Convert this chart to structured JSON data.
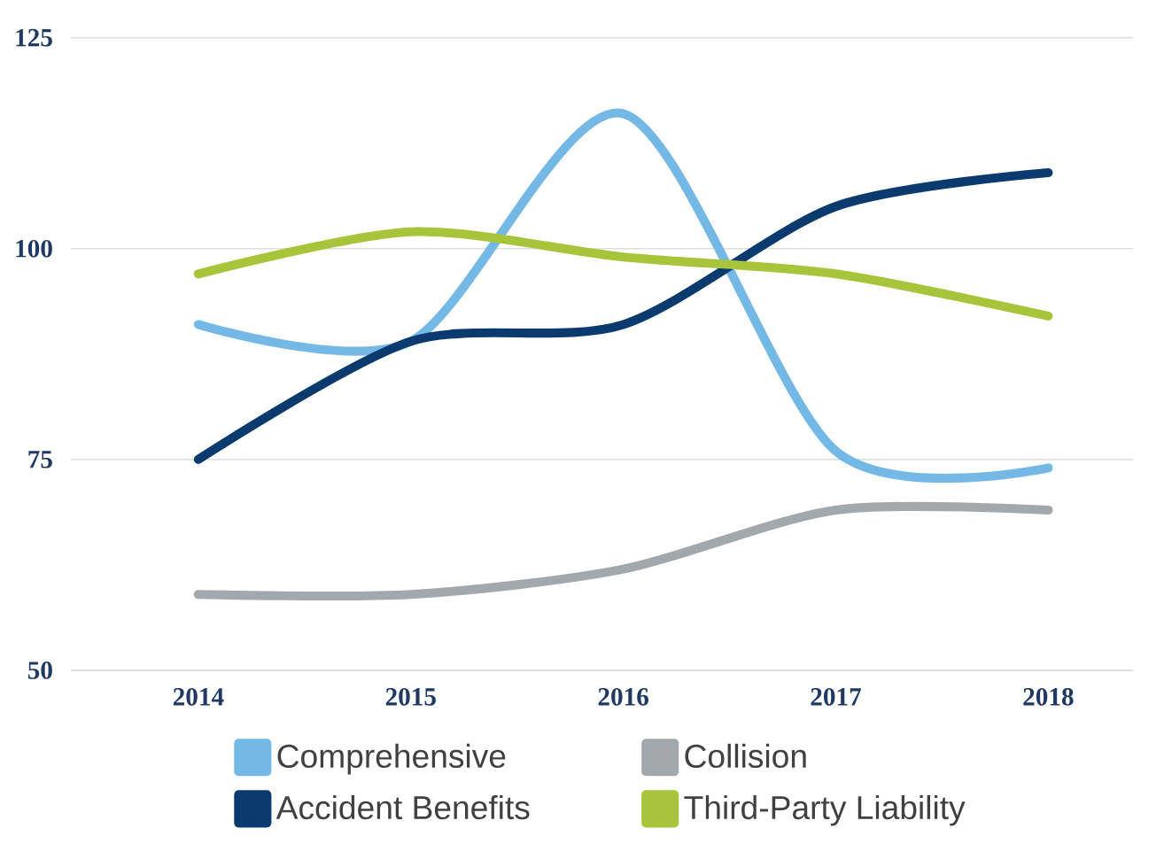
{
  "chart_data": {
    "type": "line",
    "categories": [
      "2014",
      "2015",
      "2016",
      "2017",
      "2018"
    ],
    "series": [
      {
        "name": "Comprehensive",
        "color": "#74b8e6",
        "values": [
          91,
          89,
          116,
          76,
          74
        ]
      },
      {
        "name": "Collision",
        "color": "#a2a9ad",
        "values": [
          59,
          59,
          62,
          69,
          69
        ]
      },
      {
        "name": "Accident Benefits",
        "color": "#0b3a6e",
        "values": [
          75,
          89,
          91,
          105,
          109
        ]
      },
      {
        "name": "Third-Party Liability",
        "color": "#a8c43a",
        "values": [
          97,
          102,
          99,
          97,
          92
        ]
      }
    ],
    "ylim": [
      50,
      125
    ],
    "yticks": [
      50,
      75,
      100,
      125
    ],
    "grid": "y",
    "legend": "bottom",
    "marker": "none",
    "line_style": "solid"
  }
}
